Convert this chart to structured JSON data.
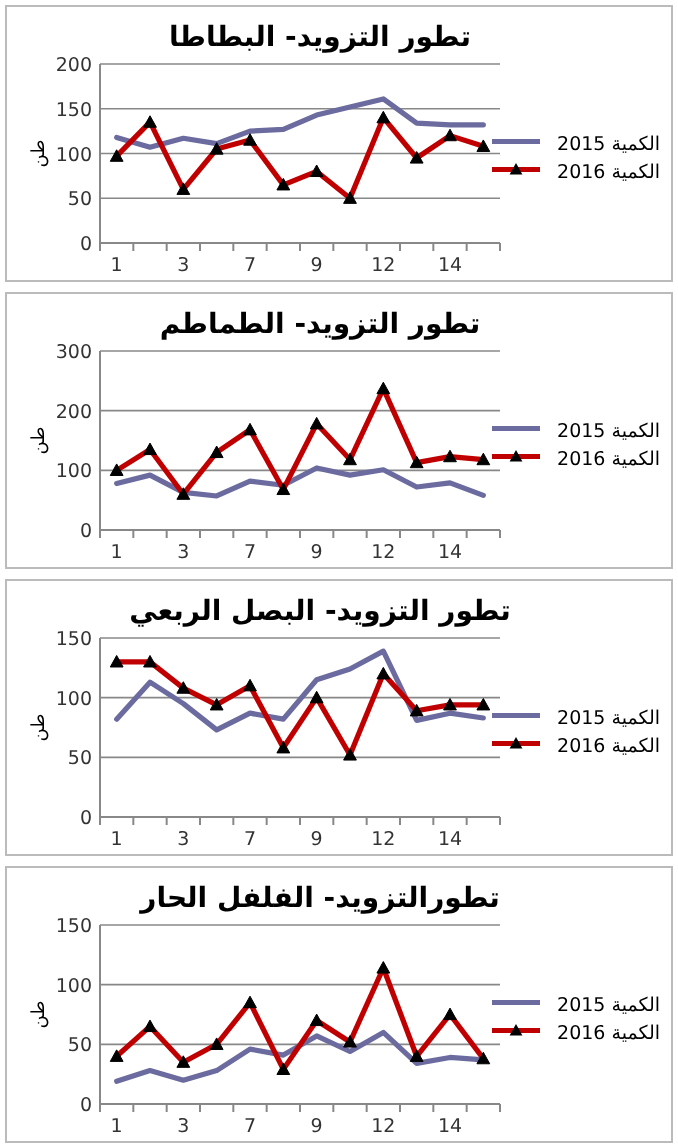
{
  "chart_data": [
    {
      "type": "line",
      "title": "تطور التزويد- البطاطا",
      "ylabel": "طن",
      "categories": [
        "1",
        null,
        "3",
        null,
        "7",
        null,
        "9",
        null,
        "12",
        null,
        "14",
        null
      ],
      "ylim": [
        0,
        200
      ],
      "yticks": [
        0,
        50,
        100,
        150,
        200
      ],
      "grid": "y",
      "legend": "right",
      "line_style": "solid",
      "series": [
        {
          "name": "الكمية 2015",
          "color": "#6b6b9f",
          "marker": "none",
          "values": [
            118,
            107,
            117,
            111,
            125,
            127,
            143,
            152,
            161,
            134,
            132,
            132
          ]
        },
        {
          "name": "الكمية 2016",
          "color": "#c00000",
          "marker": "triangle",
          "values": [
            97,
            135,
            60,
            105,
            115,
            65,
            80,
            50,
            140,
            95,
            120,
            108
          ]
        }
      ]
    },
    {
      "type": "line",
      "title": "تطور التزويد- الطماطم",
      "ylabel": "طن",
      "categories": [
        "1",
        null,
        "3",
        null,
        "7",
        null,
        "9",
        null,
        "12",
        null,
        "14",
        null
      ],
      "ylim": [
        0,
        300
      ],
      "yticks": [
        0,
        100,
        200,
        300
      ],
      "grid": "y",
      "legend": "right",
      "line_style": "solid",
      "series": [
        {
          "name": "الكمية 2015",
          "color": "#6b6b9f",
          "marker": "none",
          "values": [
            78,
            92,
            63,
            57,
            82,
            75,
            104,
            92,
            101,
            72,
            79,
            58
          ]
        },
        {
          "name": "الكمية 2016",
          "color": "#c00000",
          "marker": "triangle",
          "values": [
            100,
            135,
            60,
            130,
            168,
            68,
            178,
            118,
            237,
            113,
            123,
            118
          ]
        }
      ]
    },
    {
      "type": "line",
      "title": "تطور التزويد- البصل الربعي",
      "ylabel": "طن",
      "categories": [
        "1",
        null,
        "3",
        null,
        "7",
        null,
        "9",
        null,
        "12",
        null,
        "14",
        null
      ],
      "ylim": [
        0,
        150
      ],
      "yticks": [
        0,
        50,
        100,
        150
      ],
      "grid": "y",
      "legend": "right",
      "line_style": "solid",
      "series": [
        {
          "name": "الكمية 2015",
          "color": "#6b6b9f",
          "marker": "none",
          "values": [
            82,
            113,
            95,
            73,
            87,
            82,
            115,
            124,
            139,
            81,
            87,
            83
          ]
        },
        {
          "name": "الكمية 2016",
          "color": "#c00000",
          "marker": "triangle",
          "values": [
            130,
            130,
            108,
            94,
            110,
            58,
            100,
            52,
            120,
            89,
            94,
            94
          ]
        }
      ]
    },
    {
      "type": "line",
      "title": "تطورالتزويد- الفلفل الحار",
      "ylabel": "طن",
      "categories": [
        "1",
        null,
        "3",
        null,
        "7",
        null,
        "9",
        null,
        "12",
        null,
        "14",
        null
      ],
      "ylim": [
        0,
        150
      ],
      "yticks": [
        0,
        50,
        100,
        150
      ],
      "grid": "y",
      "legend": "right",
      "line_style": "solid",
      "series": [
        {
          "name": "الكمية 2015",
          "color": "#6b6b9f",
          "marker": "none",
          "values": [
            19,
            28,
            20,
            28,
            46,
            41,
            57,
            44,
            60,
            34,
            39,
            37
          ]
        },
        {
          "name": "الكمية 2016",
          "color": "#c00000",
          "marker": "triangle",
          "values": [
            40,
            65,
            35,
            50,
            85,
            29,
            70,
            52,
            114,
            40,
            75,
            38
          ]
        }
      ]
    }
  ]
}
